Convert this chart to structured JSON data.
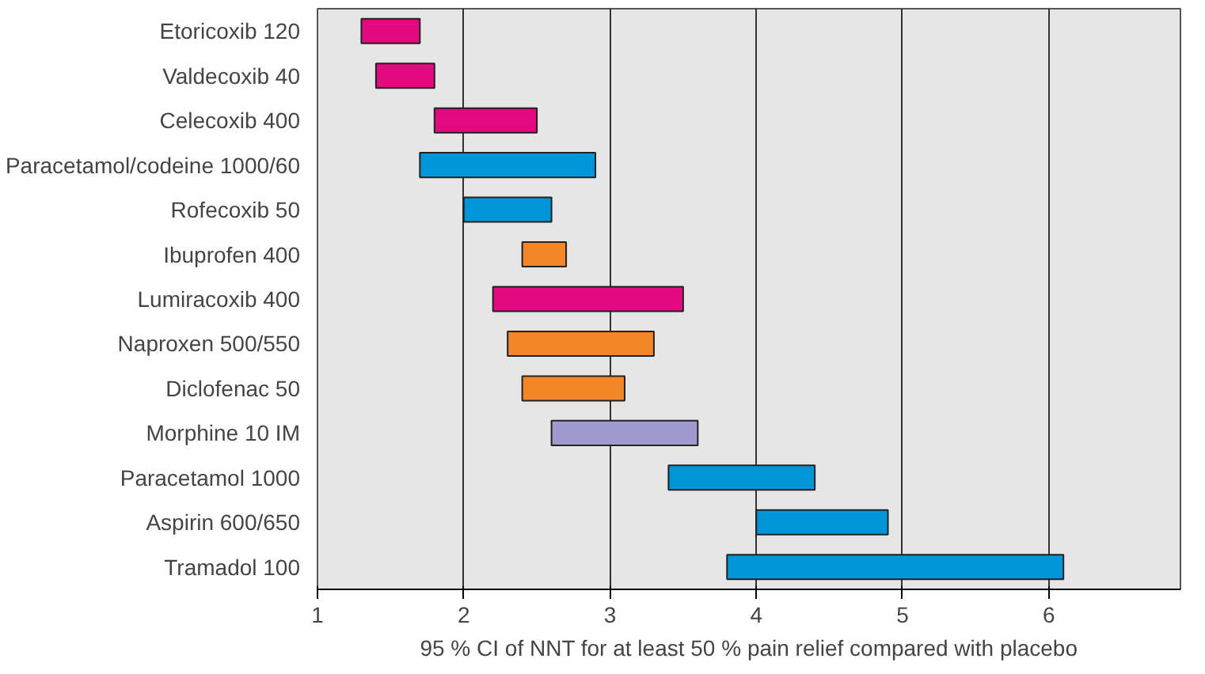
{
  "chart_data": {
    "type": "bar",
    "orientation": "horizontal",
    "xlabel": "95 % CI of NNT for at least 50 % pain relief compared with placebo",
    "categories": [
      "Etoricoxib 120",
      "Valdecoxib 40",
      "Celecoxib 400",
      "Paracetamol/codeine 1000/60",
      "Rofecoxib 50",
      "Ibuprofen 400",
      "Lumiracoxib 400",
      "Naproxen 500/550",
      "Diclofenac 50",
      "Morphine 10 IM",
      "Paracetamol 1000",
      "Aspirin 600/650",
      "Tramadol 100"
    ],
    "base": [
      1.3,
      1.4,
      1.8,
      1.7,
      2.0,
      2.4,
      2.2,
      2.3,
      2.4,
      2.6,
      3.4,
      4.0,
      3.8
    ],
    "values": [
      0.4,
      0.4,
      0.7,
      1.2,
      0.6,
      0.3,
      1.3,
      1.0,
      0.7,
      1.0,
      1.0,
      0.9,
      2.3
    ],
    "colors": [
      "#e5097f",
      "#e5097f",
      "#e5097f",
      "#0095d9",
      "#0095d9",
      "#f4862a",
      "#e5097f",
      "#f4862a",
      "#f4862a",
      "#a09ad0",
      "#0095d9",
      "#0095d9",
      "#0095d9"
    ],
    "xlim": [
      1,
      6.9
    ],
    "xticks": [
      1,
      2,
      3,
      4,
      5,
      6
    ],
    "grid": "x"
  }
}
